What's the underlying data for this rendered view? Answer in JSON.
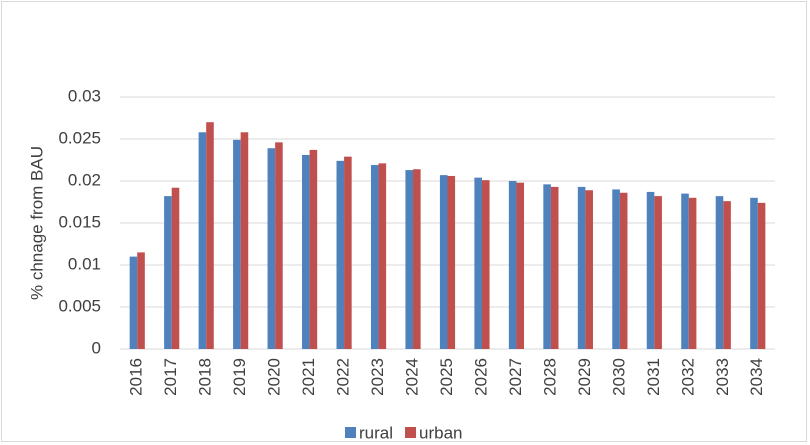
{
  "chart_data": {
    "type": "bar",
    "y_label": "% chnage from BAU",
    "categories": [
      "2016",
      "2017",
      "2018",
      "2019",
      "2020",
      "2021",
      "2022",
      "2023",
      "2024",
      "2025",
      "2026",
      "2027",
      "2028",
      "2029",
      "2030",
      "2031",
      "2032",
      "2033",
      "2034"
    ],
    "series": [
      {
        "name": "rural",
        "color": "#4f81bd",
        "values": [
          0.011,
          0.0182,
          0.0258,
          0.0249,
          0.0239,
          0.0231,
          0.0224,
          0.0219,
          0.0213,
          0.0207,
          0.0204,
          0.02,
          0.0196,
          0.0193,
          0.019,
          0.0187,
          0.0185,
          0.0182,
          0.018
        ]
      },
      {
        "name": "urban",
        "color": "#c0504d",
        "values": [
          0.0115,
          0.0192,
          0.027,
          0.0258,
          0.0246,
          0.0237,
          0.0229,
          0.0221,
          0.0214,
          0.0206,
          0.0201,
          0.0198,
          0.0193,
          0.0189,
          0.0186,
          0.0182,
          0.018,
          0.0176,
          0.0174
        ]
      }
    ],
    "ylim": [
      0,
      0.03
    ],
    "yticks": [
      0,
      0.005,
      0.01,
      0.015,
      0.02,
      0.025,
      0.03
    ],
    "grid": true,
    "legend": "bottom"
  }
}
